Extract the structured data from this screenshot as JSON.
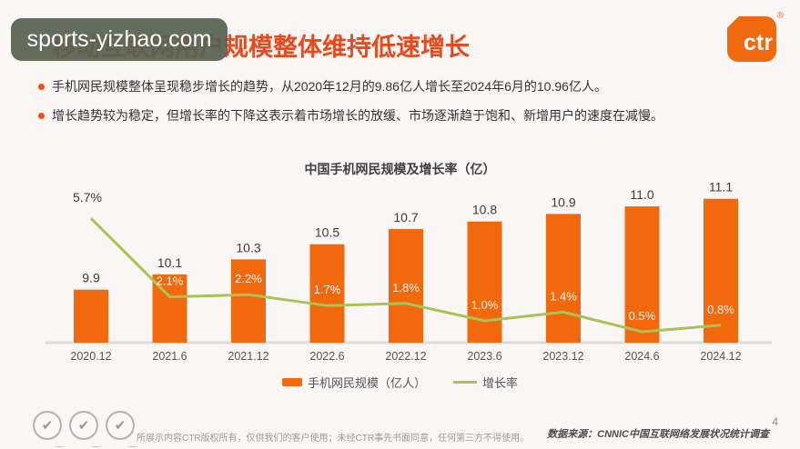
{
  "watermark": {
    "text": "sports-yizhao.com"
  },
  "logo": {
    "text": "ctr",
    "registered": "®",
    "color": "#f1690f"
  },
  "title": "移动互联网用户规模整体维持低速增长",
  "bullets": [
    "手机网民规模整体呈现稳步增长的趋势，从2020年12月的9.86亿人增长至2024年6月的10.96亿人。",
    "增长趋势较为稳定，但增长率的下降这表示着市场增长的放缓、市场逐渐趋于饱和、新增用户的速度在减慢。"
  ],
  "chart_data": {
    "type": "bar+line",
    "title": "中国手机网民规模及增长率（亿）",
    "categories": [
      "2020.12",
      "2021.6",
      "2021.12",
      "2022.6",
      "2022.12",
      "2023.6",
      "2023.12",
      "2024.6",
      "2024.12"
    ],
    "series": [
      {
        "name": "手机网民规模（亿人）",
        "type": "bar",
        "color": "#f2690d",
        "values": [
          9.9,
          10.1,
          10.3,
          10.5,
          10.7,
          10.8,
          10.9,
          11.0,
          11.1
        ],
        "labels": [
          "9.9",
          "10.1",
          "10.3",
          "10.5",
          "10.7",
          "10.8",
          "10.9",
          "11.0",
          "11.1"
        ]
      },
      {
        "name": "增长率",
        "type": "line",
        "color": "#a8c455",
        "values_pct": [
          5.7,
          2.1,
          2.2,
          1.7,
          1.8,
          1.0,
          1.4,
          0.5,
          0.8
        ],
        "labels": [
          "5.7%",
          "2.1%",
          "2.2%",
          "1.7%",
          "1.8%",
          "1.0%",
          "1.4%",
          "0.5%",
          "0.8%"
        ]
      }
    ],
    "bar_axis_min": 9.2,
    "grid": false,
    "legend_position": "bottom",
    "axis_color": "#dcdcdc"
  },
  "footer": {
    "stamp_glyph": "✔",
    "disclaimer": "所展示内容CTR版权所有，仅供我们的客户使用；未经CTR事先书面同意，任何第三方不得使用。",
    "source": "数据来源：CNNIC中国互联网络发展状况统计调查",
    "page_number": "4"
  }
}
